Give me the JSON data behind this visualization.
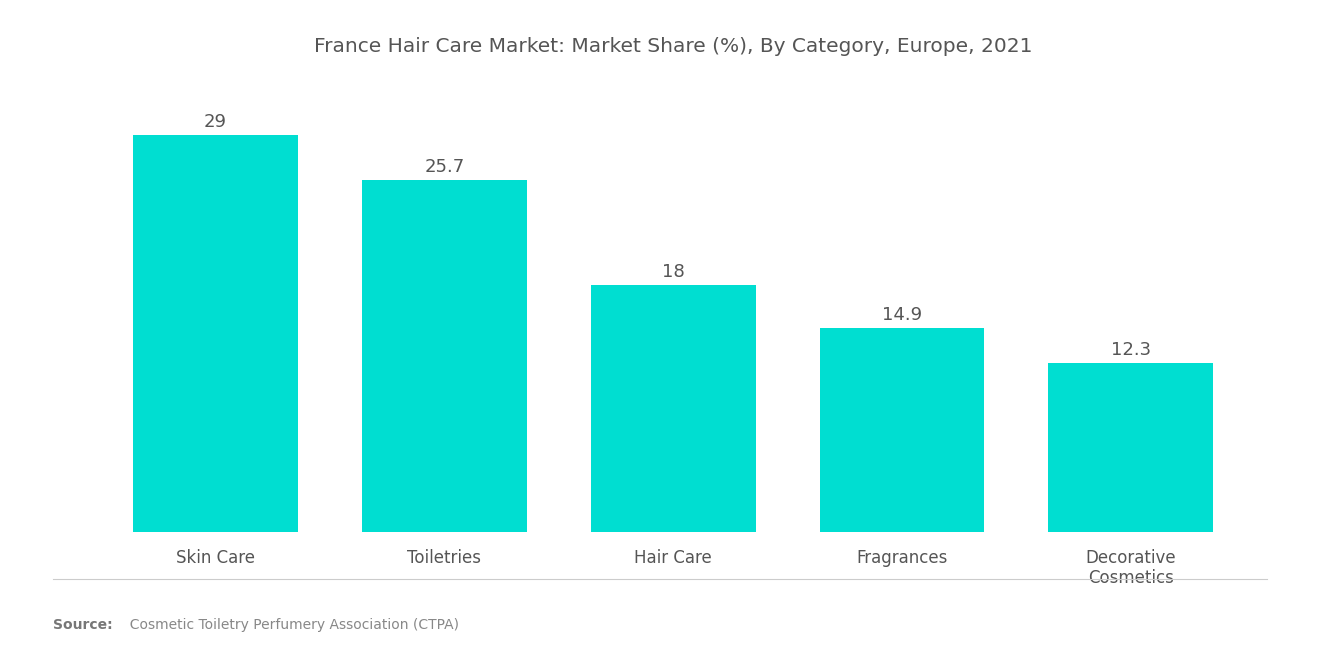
{
  "title": "France Hair Care Market: Market Share (%), By Category, Europe, 2021",
  "categories": [
    "Skin Care",
    "Toiletries",
    "Hair Care",
    "Fragrances",
    "Decorative\nCosmetics"
  ],
  "values": [
    29,
    25.7,
    18,
    14.9,
    12.3
  ],
  "value_labels": [
    "29",
    "25.7",
    "18",
    "14.9",
    "12.3"
  ],
  "bar_color": "#00DED1",
  "background_color": "#FFFFFF",
  "title_fontsize": 14.5,
  "value_fontsize": 13,
  "tick_fontsize": 12,
  "source_bold": "Source:",
  "source_rest": "  Cosmetic Toiletry Perfumery Association (CTPA)",
  "ylim": [
    0,
    33
  ],
  "bar_width": 0.72
}
